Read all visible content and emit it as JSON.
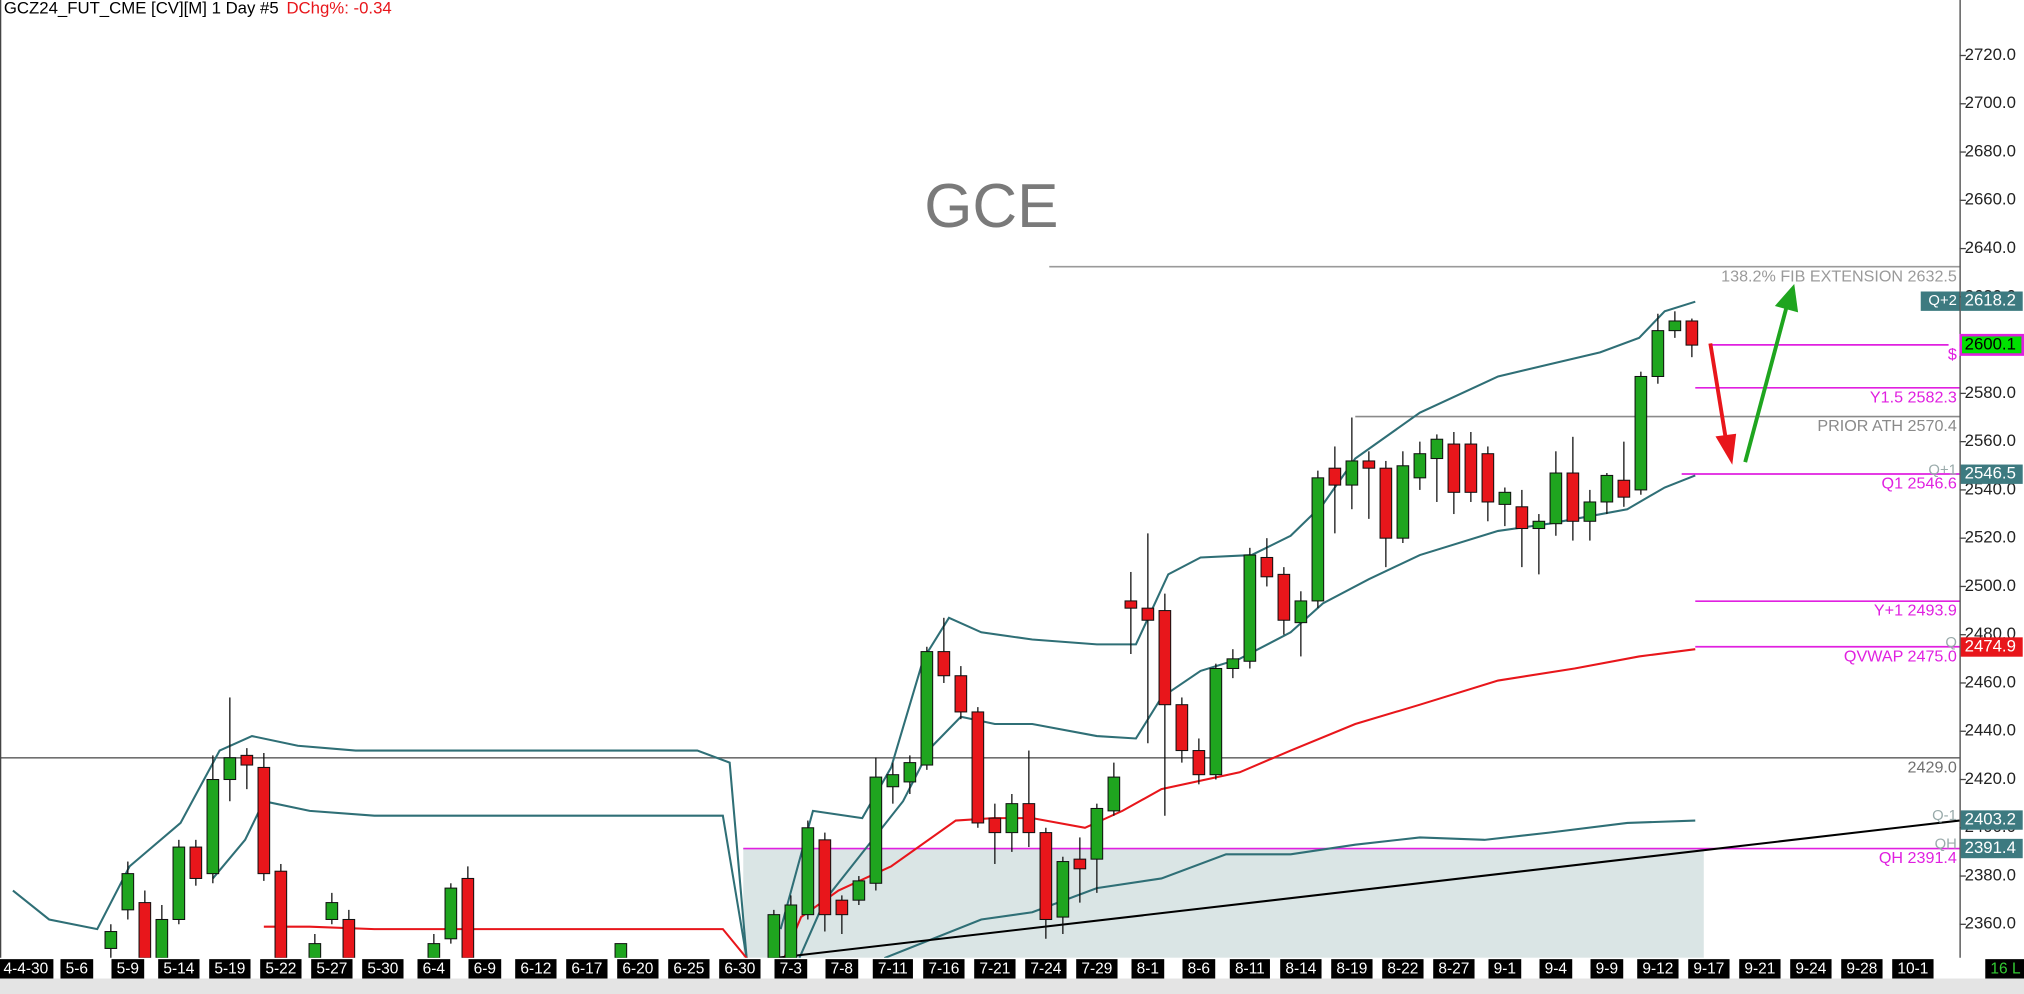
{
  "chart_data": {
    "type": "candlestick",
    "header": "GCZ24_FUT_CME [CV][M]  1 Day #5",
    "change": "DChg%: -0.34",
    "title": "GCE",
    "corner_label": "16 L",
    "up_color": "#1fa51f",
    "down_color": "#e8161b",
    "xlim": [
      -1.52,
      113.74
    ],
    "ylim": [
      2346.1,
      2743
    ],
    "xticks": [
      {
        "value": 0,
        "label": "4-4-30"
      },
      {
        "value": 3,
        "label": "5-6"
      },
      {
        "value": 6,
        "label": "5-9"
      },
      {
        "value": 9,
        "label": "5-14"
      },
      {
        "value": 12,
        "label": "5-19"
      },
      {
        "value": 15,
        "label": "5-22"
      },
      {
        "value": 18,
        "label": "5-27"
      },
      {
        "value": 21,
        "label": "5-30"
      },
      {
        "value": 24,
        "label": "6-4"
      },
      {
        "value": 27,
        "label": "6-9"
      },
      {
        "value": 30,
        "label": "6-12"
      },
      {
        "value": 33,
        "label": "6-17"
      },
      {
        "value": 36,
        "label": "6-20"
      },
      {
        "value": 39,
        "label": "6-25"
      },
      {
        "value": 42,
        "label": "6-30"
      },
      {
        "value": 45,
        "label": "7-3"
      },
      {
        "value": 48,
        "label": "7-8"
      },
      {
        "value": 51,
        "label": "7-11"
      },
      {
        "value": 54,
        "label": "7-16"
      },
      {
        "value": 57,
        "label": "7-21"
      },
      {
        "value": 60,
        "label": "7-24"
      },
      {
        "value": 63,
        "label": "7-29"
      },
      {
        "value": 66,
        "label": "8-1"
      },
      {
        "value": 69,
        "label": "8-6"
      },
      {
        "value": 72,
        "label": "8-11"
      },
      {
        "value": 75,
        "label": "8-14"
      },
      {
        "value": 78,
        "label": "8-19"
      },
      {
        "value": 81,
        "label": "8-22"
      },
      {
        "value": 84,
        "label": "8-27"
      },
      {
        "value": 87,
        "label": "9-1"
      },
      {
        "value": 90,
        "label": "9-4"
      },
      {
        "value": 93,
        "label": "9-9"
      },
      {
        "value": 96,
        "label": "9-12"
      },
      {
        "value": 99,
        "label": "9-17"
      },
      {
        "value": 102,
        "label": "9-21"
      },
      {
        "value": 105,
        "label": "9-24"
      },
      {
        "value": 108,
        "label": "9-28"
      },
      {
        "value": 111,
        "label": "10-1"
      }
    ],
    "yticks": [
      {
        "value": 2360,
        "label": "2360.0"
      },
      {
        "value": 2380,
        "label": "2380.0"
      },
      {
        "value": 2400,
        "label": "2400.0"
      },
      {
        "value": 2420,
        "label": "2420.0"
      },
      {
        "value": 2440,
        "label": "2440.0"
      },
      {
        "value": 2460,
        "label": "2460.0"
      },
      {
        "value": 2480,
        "label": "2480.0"
      },
      {
        "value": 2500,
        "label": "2500.0"
      },
      {
        "value": 2520,
        "label": "2520.0"
      },
      {
        "value": 2540,
        "label": "2540.0"
      },
      {
        "value": 2560,
        "label": "2560.0"
      },
      {
        "value": 2580,
        "label": "2580.0"
      },
      {
        "value": 2600,
        "label": "2600.0"
      },
      {
        "value": 2620,
        "label": "2620.0"
      },
      {
        "value": 2640,
        "label": "2640.0"
      },
      {
        "value": 2660,
        "label": "2660.0"
      },
      {
        "value": 2680,
        "label": "2680.0"
      },
      {
        "value": 2700,
        "label": "2700.0"
      },
      {
        "value": 2720,
        "label": "2720.0"
      }
    ],
    "candles": {
      "x": [
        5,
        6,
        7,
        8,
        9,
        10,
        11,
        12,
        13,
        14,
        15,
        17,
        18,
        19,
        24,
        25,
        26,
        35,
        44,
        45,
        46,
        47,
        48,
        49,
        50,
        51,
        52,
        53,
        54,
        55,
        56,
        57,
        58,
        59,
        60,
        61,
        62,
        63,
        64,
        65,
        66,
        67,
        68,
        69,
        70,
        71,
        72,
        73,
        74,
        75,
        76,
        77,
        78,
        79,
        80,
        81,
        82,
        83,
        84,
        85,
        86,
        87,
        88,
        89,
        90,
        91,
        92,
        93,
        94,
        95,
        96,
        97,
        98
      ],
      "open": [
        2350,
        2366,
        2369,
        2346,
        2362,
        2392,
        2381,
        2420,
        2430,
        2425,
        2382,
        2346,
        2362,
        2362,
        2346,
        2354,
        2379,
        2346,
        2346,
        2346,
        2364,
        2395,
        2370,
        2370,
        2377,
        2417,
        2419,
        2426,
        2473,
        2463,
        2448,
        2404,
        2398,
        2410,
        2398,
        2363,
        2387,
        2387,
        2407,
        2494,
        2491,
        2490,
        2451,
        2432,
        2422,
        2466,
        2469,
        2512,
        2505,
        2485,
        2494,
        2549,
        2542,
        2552,
        2549,
        2520,
        2545,
        2553,
        2559,
        2559,
        2555,
        2534,
        2533,
        2524,
        2526,
        2547,
        2527,
        2535,
        2544,
        2540,
        2587,
        2606,
        2610
      ],
      "high": [
        2360,
        2386,
        2374,
        2368,
        2395,
        2395,
        2430,
        2454,
        2433,
        2431,
        2385,
        2356,
        2373,
        2366,
        2356,
        2377,
        2384,
        2352,
        2366,
        2372,
        2403,
        2398,
        2372,
        2380,
        2429,
        2427,
        2430,
        2475,
        2487,
        2467,
        2450,
        2410,
        2414,
        2432,
        2400,
        2388,
        2396,
        2410,
        2427,
        2506,
        2522,
        2497,
        2454,
        2437,
        2468,
        2474,
        2516,
        2520,
        2508,
        2498,
        2548,
        2558,
        2570,
        2556,
        2552,
        2556,
        2560,
        2563,
        2564,
        2564,
        2558,
        2541,
        2540,
        2530,
        2556,
        2562,
        2540,
        2547,
        2560,
        2589,
        2613,
        2614,
        2611
      ],
      "low": [
        2346,
        2362,
        2346,
        2346,
        2360,
        2376,
        2377,
        2411,
        2416,
        2378,
        2346,
        2346,
        2360,
        2346,
        2346,
        2352,
        2346,
        2346,
        2346,
        2346,
        2362,
        2357,
        2356,
        2368,
        2374,
        2410,
        2414,
        2424,
        2460,
        2445,
        2400,
        2385,
        2390,
        2392,
        2354,
        2356,
        2369,
        2373,
        2405,
        2472,
        2435,
        2405,
        2427,
        2418,
        2420,
        2462,
        2466,
        2500,
        2480,
        2471,
        2491,
        2522,
        2532,
        2528,
        2508,
        2518,
        2540,
        2535,
        2530,
        2535,
        2527,
        2525,
        2508,
        2505,
        2521,
        2519,
        2519,
        2530,
        2533,
        2538,
        2584,
        2603,
        2595
      ],
      "close": [
        2357,
        2381,
        2346,
        2362,
        2392,
        2379,
        2420,
        2429,
        2426,
        2381,
        2346,
        2352,
        2369,
        2346,
        2352,
        2375,
        2346,
        2352,
        2364,
        2368,
        2400,
        2364,
        2364,
        2378,
        2421,
        2422,
        2427,
        2473,
        2463,
        2448,
        2402,
        2398,
        2410,
        2398,
        2362,
        2386,
        2383,
        2408,
        2421,
        2491,
        2486,
        2451,
        2432,
        2422,
        2466,
        2470,
        2513,
        2504,
        2486,
        2494,
        2545,
        2542,
        2552,
        2549,
        2520,
        2550,
        2555,
        2561,
        2539,
        2539,
        2535,
        2539,
        2524,
        2527,
        2547,
        2527,
        2535,
        2546,
        2537,
        2587,
        2606,
        2610,
        2600
      ]
    },
    "lines": [
      {
        "color": "#2f6f76",
        "x": [
          -0.76,
          1.37,
          4.2,
          6.1,
          9.1,
          11.4,
          13.3,
          16,
          19.4,
          39.5,
          41.4,
          42.4,
          null,
          44.4,
          46.3,
          49.2,
          50.9,
          52.8,
          54.3,
          56.2,
          59.2,
          63,
          65.3,
          67.2,
          69.1,
          72.1,
          74.4,
          76.3,
          78.2,
          82,
          86.6,
          89.6,
          92.6,
          94.9,
          96.4,
          98.2
        ],
        "values": [
          2374,
          2362,
          2358,
          2384,
          2402,
          2432,
          2438,
          2434,
          2432,
          2432,
          2427,
          2346,
          null,
          2358,
          2407,
          2404,
          2425,
          2470,
          2487,
          2481,
          2478,
          2476,
          2476,
          2505,
          2512,
          2513,
          2521,
          2534,
          2553,
          2572,
          2587,
          2592,
          2597,
          2603,
          2614,
          2618
        ]
      },
      {
        "color": "#2f6f76",
        "x": [
          11,
          12.9,
          14,
          16.7,
          20.5,
          41,
          42.4,
          null,
          45.5,
          47,
          51.6,
          53.2,
          55,
          57,
          59.2,
          63,
          65.3,
          66.8,
          69.1,
          71.4,
          74.4,
          76.3,
          79,
          82,
          86.6,
          89.6,
          94.2,
          96.4,
          98.2
        ],
        "values": [
          2379,
          2395,
          2411,
          2407,
          2405,
          2405,
          2346,
          null,
          2346,
          2370,
          2411,
          2433,
          2446,
          2443,
          2443,
          2438,
          2437,
          2454,
          2465,
          2470,
          2481,
          2493,
          2503,
          2513,
          2523,
          2526,
          2532,
          2541,
          2546
        ]
      },
      {
        "color": "#e8161b",
        "x": [
          14,
          16.7,
          20.5,
          41,
          42.4,
          null,
          44.6,
          45.6,
          47.8,
          50.9,
          54.7,
          56.9,
          59.2,
          62.3,
          64.5,
          66.8,
          71.4,
          74.4,
          78.2,
          82,
          86.6,
          91.1,
          94.9,
          98.2
        ],
        "values": [
          2359,
          2359,
          2358,
          2358,
          2346,
          null,
          2346,
          2363,
          2374,
          2384,
          2403,
          2404,
          2404,
          2400,
          2407,
          2416,
          2423,
          2432,
          2443,
          2451,
          2461,
          2466,
          2471,
          2474
        ]
      },
      {
        "color": "#2f6f76",
        "x": [
          50.5,
          56.2,
          59.2,
          63,
          66.8,
          70.6,
          74.4,
          78.2,
          82,
          85.8,
          89.6,
          94.2,
          98.2
        ],
        "values": [
          2346,
          2362,
          2365,
          2375,
          2379,
          2389,
          2389,
          2393,
          2396,
          2395,
          2398,
          2402,
          2403
        ]
      },
      {
        "color": "#000000",
        "x": [
          44,
          113.74
        ],
        "values": [
          2346,
          2403
        ]
      }
    ],
    "shade": {
      "x": [
        42.2,
        98.7
      ],
      "top": 2391.4,
      "color": "#d3e0e0"
    },
    "levels": [
      {
        "value": 2632.5,
        "label": "138.2% FIB EXTENSION  2632.5",
        "color": "#9a9a9a",
        "x": [
          60.2,
          113.74
        ]
      },
      {
        "value": 2600.1,
        "label": "$",
        "color": "#e020e0",
        "x": [
          99.1,
          113.1
        ]
      },
      {
        "value": 2582.3,
        "label": "Y1.5  2582.3",
        "color": "#e020e0",
        "x": [
          98.2,
          113.74
        ]
      },
      {
        "value": 2570.4,
        "label": "PRIOR ATH  2570.4",
        "color": "#8a8a8a",
        "x": [
          78.2,
          113.74
        ]
      },
      {
        "value": 2546.6,
        "label": "Q1  2546.6",
        "color": "#e020e0",
        "x": [
          97.4,
          113.74
        ]
      },
      {
        "value": 2493.9,
        "label": "Y+1  2493.9",
        "color": "#e020e0",
        "x": [
          98.2,
          113.74
        ]
      },
      {
        "value": 2475,
        "label": "QVWAP  2475.0",
        "color": "#e020e0",
        "x": [
          98.2,
          113.74
        ]
      },
      {
        "value": 2429,
        "label": "2429.0",
        "color": "#707070",
        "x": [
          -1.52,
          113.74
        ]
      },
      {
        "value": 2391.4,
        "label": "QH  2391.4",
        "color": "#e020e0",
        "x": [
          42.2,
          113.74
        ]
      }
    ],
    "axis_markers": [
      {
        "value": 2618.2,
        "name": "Q+2",
        "color": "#3d7a80"
      },
      {
        "value": 2600.1,
        "color": "#00e000"
      },
      {
        "value": 2546.5,
        "name": "Q+1",
        "color": "#3d7a80"
      },
      {
        "value": 2474.9,
        "name": "Q",
        "color": "#e8161b"
      },
      {
        "value": 2403.2,
        "name": "Q-1",
        "color": "#3d7a80"
      },
      {
        "value": 2391.4,
        "name": "QH",
        "color": "#3d7a80"
      }
    ]
  }
}
